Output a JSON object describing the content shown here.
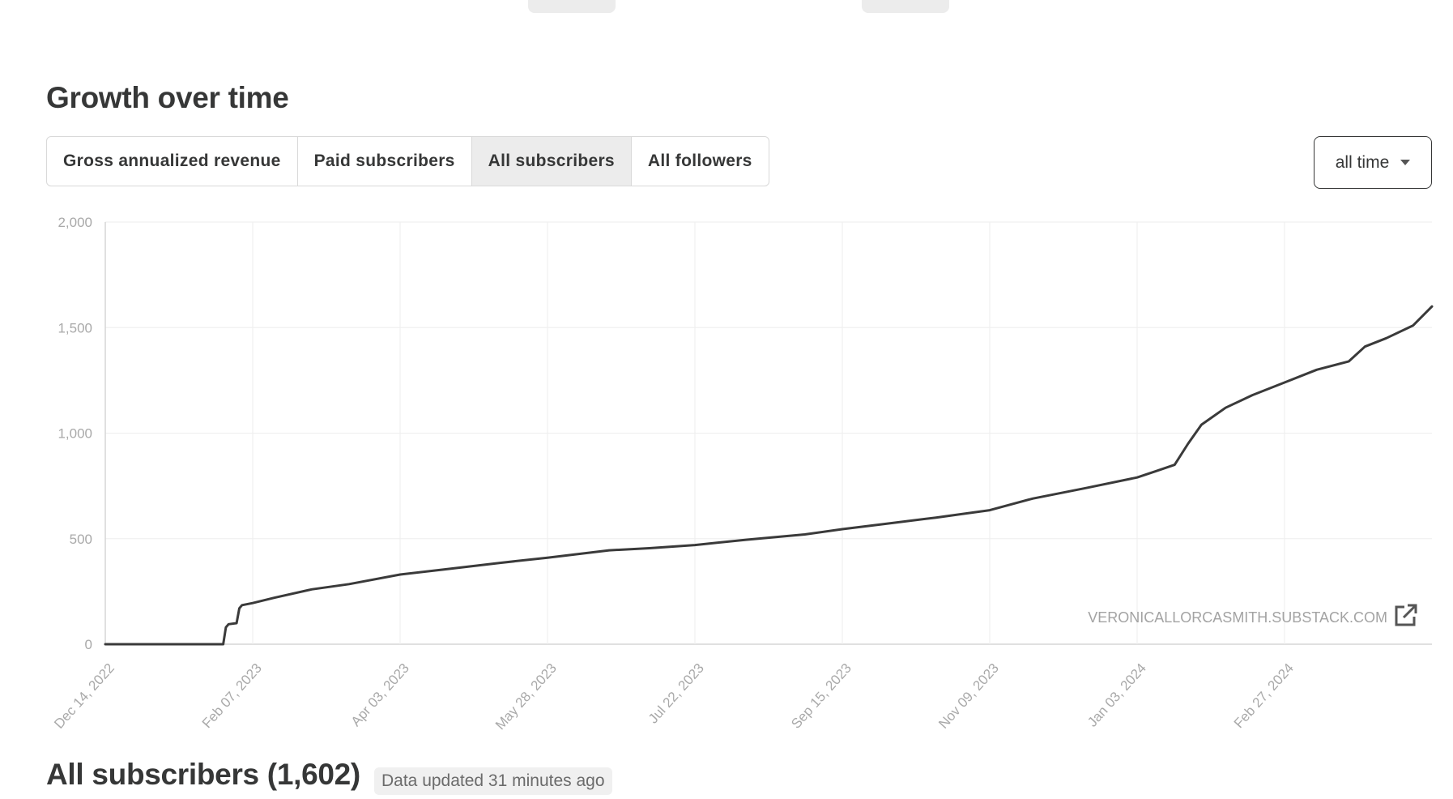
{
  "heading": "Growth over time",
  "tabs": [
    {
      "label": "Gross annualized revenue",
      "active": false
    },
    {
      "label": "Paid subscribers",
      "active": false
    },
    {
      "label": "All subscribers",
      "active": true
    },
    {
      "label": "All followers",
      "active": false
    }
  ],
  "range_select": {
    "value": "all time"
  },
  "watermark": "VERONICALLORCASMITH.SUBSTACK.COM",
  "footer": {
    "title": "All subscribers (1,602)",
    "updated": "Data updated 31 minutes ago"
  },
  "colors": {
    "line": "#3a3a3a",
    "grid": "#eeeeee",
    "text": "#363737"
  },
  "chart_data": {
    "type": "line",
    "title": "",
    "xlabel": "",
    "ylabel": "",
    "ylim": [
      0,
      2000
    ],
    "yticks": [
      0,
      500,
      1000,
      1500,
      2000
    ],
    "ytick_labels": [
      "0",
      "500",
      "1,000",
      "1,500",
      "2,000"
    ],
    "xlim": [
      "2022-12-14",
      "2024-04-22"
    ],
    "xticks": [
      "2022-12-14",
      "2023-02-07",
      "2023-04-03",
      "2023-05-28",
      "2023-07-22",
      "2023-09-15",
      "2023-11-09",
      "2024-01-03",
      "2024-02-27"
    ],
    "xtick_labels": [
      "Dec 14, 2022",
      "Feb 07, 2023",
      "Apr 03, 2023",
      "May 28, 2023",
      "Jul 22, 2023",
      "Sep 15, 2023",
      "Nov 09, 2023",
      "Jan 03, 2024",
      "Feb 27, 2024"
    ],
    "grid": true,
    "series": [
      {
        "x": [
          "2022-12-14",
          "2023-01-27",
          "2023-01-28",
          "2023-01-29",
          "2023-02-01",
          "2023-02-02",
          "2023-02-03",
          "2023-02-07",
          "2023-02-15",
          "2023-03-01",
          "2023-03-15",
          "2023-04-03",
          "2023-04-20",
          "2023-05-10",
          "2023-05-28",
          "2023-06-20",
          "2023-07-05",
          "2023-07-22",
          "2023-08-10",
          "2023-09-01",
          "2023-09-15",
          "2023-10-01",
          "2023-10-20",
          "2023-11-09",
          "2023-11-25",
          "2023-12-15",
          "2024-01-03",
          "2024-01-10",
          "2024-01-17",
          "2024-01-22",
          "2024-01-27",
          "2024-02-05",
          "2024-02-15",
          "2024-02-27",
          "2024-03-10",
          "2024-03-22",
          "2024-03-28",
          "2024-04-05",
          "2024-04-15",
          "2024-04-22"
        ],
        "y": [
          0,
          0,
          80,
          95,
          100,
          170,
          185,
          195,
          220,
          260,
          285,
          330,
          355,
          385,
          410,
          445,
          455,
          470,
          495,
          520,
          545,
          570,
          600,
          635,
          690,
          740,
          790,
          820,
          850,
          950,
          1040,
          1120,
          1180,
          1240,
          1300,
          1340,
          1410,
          1450,
          1510,
          1600
        ]
      }
    ]
  }
}
